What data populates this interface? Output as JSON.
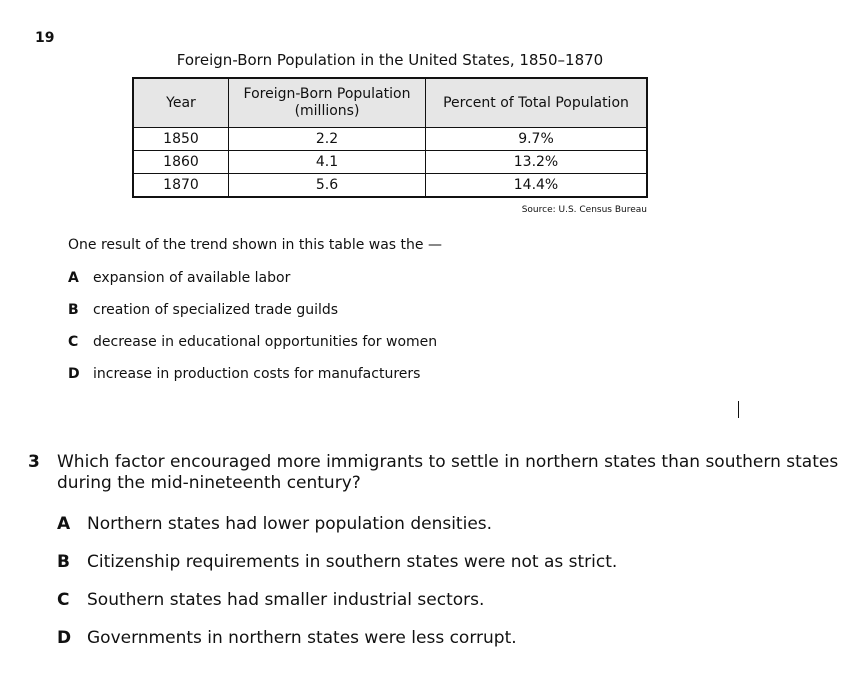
{
  "question19": {
    "number": "19",
    "table_title": "Foreign-Born Population in the United States, 1850–1870",
    "headers": [
      "Year",
      "Foreign-Born Population (millions)",
      "Percent of Total Population"
    ],
    "rows": [
      [
        "1850",
        "2.2",
        "9.7%"
      ],
      [
        "1860",
        "4.1",
        "13.2%"
      ],
      [
        "1870",
        "5.6",
        "14.4%"
      ]
    ],
    "source": "Source: U.S. Census Bureau",
    "stem": "One result of the trend shown in this table was the —",
    "options": [
      {
        "letter": "A",
        "text": "expansion of available labor"
      },
      {
        "letter": "B",
        "text": "creation of specialized trade guilds"
      },
      {
        "letter": "C",
        "text": "decrease in educational opportunities for women"
      },
      {
        "letter": "D",
        "text": "increase in production costs for manufacturers"
      }
    ]
  },
  "question3": {
    "number": "3",
    "stem": "Which factor encouraged more immigrants to settle in northern states than southern states during the mid-nineteenth century?",
    "options": [
      {
        "letter": "A",
        "text": "Northern states had lower population densities."
      },
      {
        "letter": "B",
        "text": "Citizenship requirements in southern states were not as strict."
      },
      {
        "letter": "C",
        "text": "Southern states had smaller industrial sectors."
      },
      {
        "letter": "D",
        "text": "Governments in northern states were less corrupt."
      }
    ]
  }
}
